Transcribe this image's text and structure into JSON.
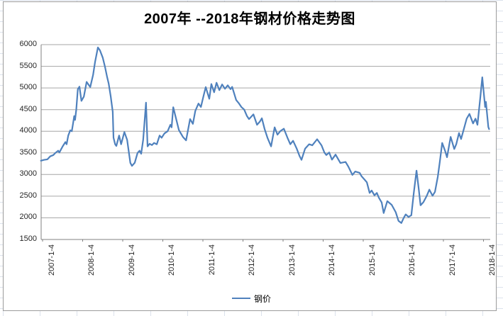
{
  "colors": {
    "series_line": "#4F81BD",
    "grid_line": "#a6a6a6",
    "axis_line": "#808080",
    "tick_text": "#262626",
    "chart_border": "#9b9b9b",
    "excel_grid": "#dce2ec"
  },
  "chart_data": {
    "type": "line",
    "title": "2007年 --2018年钢材价格走势图",
    "xlabel": "",
    "ylabel": "",
    "grid": "horizontal",
    "legend_position": "bottom",
    "y_min": 1500,
    "y_max": 6000,
    "y_step": 500,
    "y_ticks": [
      6000,
      5500,
      5000,
      4500,
      4000,
      3500,
      3000,
      2500,
      2000,
      1500
    ],
    "x_tick_years": [
      2007,
      2008,
      2009,
      2010,
      2011,
      2012,
      2013,
      2014,
      2015,
      2016,
      2017,
      2018
    ],
    "x_tick_labels": [
      "2007-1-4",
      "2008-1-4",
      "2009-1-4",
      "2010-1-4",
      "2011-1-4",
      "2012-1-4",
      "2013-1-4",
      "2014-1-4",
      "2015-1-4",
      "2016-1-4",
      "2017-1-4",
      "2018-1-4"
    ],
    "series": [
      {
        "name": "钢价",
        "color": "#4F81BD",
        "points": [
          [
            2006.96,
            3320
          ],
          [
            2007.04,
            3340
          ],
          [
            2007.12,
            3350
          ],
          [
            2007.19,
            3420
          ],
          [
            2007.27,
            3450
          ],
          [
            2007.32,
            3500
          ],
          [
            2007.39,
            3550
          ],
          [
            2007.42,
            3510
          ],
          [
            2007.5,
            3650
          ],
          [
            2007.57,
            3750
          ],
          [
            2007.6,
            3700
          ],
          [
            2007.64,
            3900
          ],
          [
            2007.69,
            4020
          ],
          [
            2007.73,
            4000
          ],
          [
            2007.76,
            4170
          ],
          [
            2007.79,
            4350
          ],
          [
            2007.81,
            4260
          ],
          [
            2007.84,
            4500
          ],
          [
            2007.88,
            4970
          ],
          [
            2007.92,
            5030
          ],
          [
            2007.97,
            4700
          ],
          [
            2008.03,
            4800
          ],
          [
            2008.1,
            5140
          ],
          [
            2008.19,
            5020
          ],
          [
            2008.26,
            5300
          ],
          [
            2008.31,
            5600
          ],
          [
            2008.38,
            5935
          ],
          [
            2008.43,
            5870
          ],
          [
            2008.5,
            5700
          ],
          [
            2008.56,
            5480
          ],
          [
            2008.61,
            5250
          ],
          [
            2008.65,
            5100
          ],
          [
            2008.7,
            4800
          ],
          [
            2008.73,
            4600
          ],
          [
            2008.75,
            4450
          ],
          [
            2008.77,
            3850
          ],
          [
            2008.81,
            3700
          ],
          [
            2008.84,
            3660
          ],
          [
            2008.91,
            3900
          ],
          [
            2008.96,
            3700
          ],
          [
            2009.04,
            3980
          ],
          [
            2009.11,
            3800
          ],
          [
            2009.19,
            3270
          ],
          [
            2009.23,
            3200
          ],
          [
            2009.3,
            3270
          ],
          [
            2009.37,
            3500
          ],
          [
            2009.42,
            3550
          ],
          [
            2009.46,
            3480
          ],
          [
            2009.51,
            3800
          ],
          [
            2009.58,
            4660
          ],
          [
            2009.62,
            3650
          ],
          [
            2009.67,
            3710
          ],
          [
            2009.73,
            3680
          ],
          [
            2009.78,
            3730
          ],
          [
            2009.85,
            3700
          ],
          [
            2009.92,
            3900
          ],
          [
            2009.97,
            3850
          ],
          [
            2010.04,
            3950
          ],
          [
            2010.12,
            4000
          ],
          [
            2010.19,
            4150
          ],
          [
            2010.22,
            4090
          ],
          [
            2010.26,
            4555
          ],
          [
            2010.4,
            4030
          ],
          [
            2010.5,
            3870
          ],
          [
            2010.58,
            3790
          ],
          [
            2010.68,
            4280
          ],
          [
            2010.75,
            4170
          ],
          [
            2010.81,
            4470
          ],
          [
            2010.89,
            4640
          ],
          [
            2010.95,
            4560
          ],
          [
            2011.02,
            4830
          ],
          [
            2011.07,
            5020
          ],
          [
            2011.16,
            4750
          ],
          [
            2011.21,
            5090
          ],
          [
            2011.28,
            4900
          ],
          [
            2011.34,
            5120
          ],
          [
            2011.41,
            4950
          ],
          [
            2011.48,
            5080
          ],
          [
            2011.55,
            4980
          ],
          [
            2011.62,
            5060
          ],
          [
            2011.69,
            4970
          ],
          [
            2011.73,
            5025
          ],
          [
            2011.83,
            4720
          ],
          [
            2011.9,
            4640
          ],
          [
            2011.96,
            4560
          ],
          [
            2012.03,
            4500
          ],
          [
            2012.1,
            4350
          ],
          [
            2012.15,
            4280
          ],
          [
            2012.26,
            4390
          ],
          [
            2012.35,
            4150
          ],
          [
            2012.42,
            4220
          ],
          [
            2012.47,
            4300
          ],
          [
            2012.54,
            4050
          ],
          [
            2012.61,
            3850
          ],
          [
            2012.7,
            3650
          ],
          [
            2012.79,
            4090
          ],
          [
            2012.86,
            3920
          ],
          [
            2012.93,
            4000
          ],
          [
            2013.02,
            4060
          ],
          [
            2013.11,
            3850
          ],
          [
            2013.18,
            3700
          ],
          [
            2013.25,
            3780
          ],
          [
            2013.34,
            3600
          ],
          [
            2013.41,
            3430
          ],
          [
            2013.46,
            3340
          ],
          [
            2013.55,
            3600
          ],
          [
            2013.65,
            3700
          ],
          [
            2013.73,
            3675
          ],
          [
            2013.85,
            3815
          ],
          [
            2013.96,
            3675
          ],
          [
            2014.03,
            3510
          ],
          [
            2014.08,
            3450
          ],
          [
            2014.15,
            3510
          ],
          [
            2014.22,
            3345
          ],
          [
            2014.31,
            3460
          ],
          [
            2014.43,
            3265
          ],
          [
            2014.56,
            3290
          ],
          [
            2014.63,
            3180
          ],
          [
            2014.73,
            2990
          ],
          [
            2014.8,
            3070
          ],
          [
            2014.91,
            3040
          ],
          [
            2014.96,
            2960
          ],
          [
            2015.04,
            2875
          ],
          [
            2015.09,
            2820
          ],
          [
            2015.16,
            2575
          ],
          [
            2015.21,
            2630
          ],
          [
            2015.28,
            2520
          ],
          [
            2015.34,
            2575
          ],
          [
            2015.39,
            2465
          ],
          [
            2015.46,
            2355
          ],
          [
            2015.51,
            2110
          ],
          [
            2015.6,
            2385
          ],
          [
            2015.71,
            2300
          ],
          [
            2015.81,
            2130
          ],
          [
            2015.88,
            1930
          ],
          [
            2015.95,
            1880
          ],
          [
            2016.01,
            2000
          ],
          [
            2016.06,
            2080
          ],
          [
            2016.13,
            2020
          ],
          [
            2016.2,
            2060
          ],
          [
            2016.26,
            2570
          ],
          [
            2016.33,
            3090
          ],
          [
            2016.38,
            2700
          ],
          [
            2016.43,
            2290
          ],
          [
            2016.5,
            2360
          ],
          [
            2016.58,
            2500
          ],
          [
            2016.65,
            2650
          ],
          [
            2016.73,
            2510
          ],
          [
            2016.79,
            2600
          ],
          [
            2016.86,
            2950
          ],
          [
            2016.91,
            3290
          ],
          [
            2016.97,
            3730
          ],
          [
            2017.04,
            3550
          ],
          [
            2017.09,
            3400
          ],
          [
            2017.18,
            3870
          ],
          [
            2017.27,
            3590
          ],
          [
            2017.32,
            3700
          ],
          [
            2017.39,
            3960
          ],
          [
            2017.44,
            3820
          ],
          [
            2017.51,
            4050
          ],
          [
            2017.58,
            4290
          ],
          [
            2017.65,
            4400
          ],
          [
            2017.74,
            4180
          ],
          [
            2017.8,
            4290
          ],
          [
            2017.85,
            4150
          ],
          [
            2017.92,
            4780
          ],
          [
            2017.97,
            5245
          ],
          [
            2018.04,
            4560
          ],
          [
            2018.06,
            4680
          ],
          [
            2018.12,
            4100
          ],
          [
            2018.14,
            4050
          ]
        ]
      }
    ]
  }
}
